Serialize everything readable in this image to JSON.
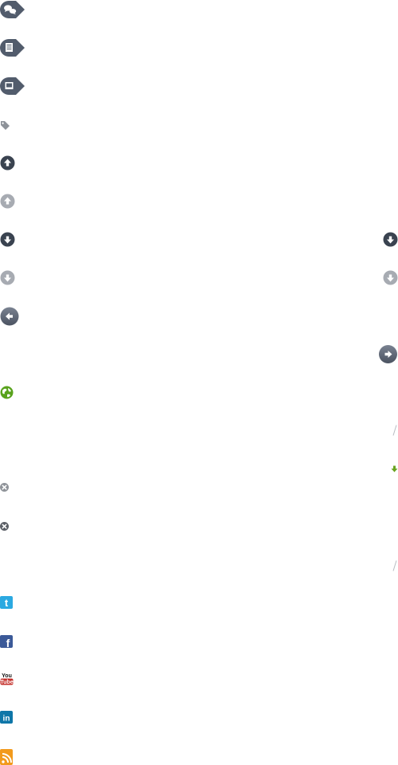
{
  "colors": {
    "bubble_dark": "#525c6c",
    "circle_dark": "#3a4350",
    "circle_light": "#a7abb2",
    "circle_gray": "#9ea2a8",
    "arrow_blue_gray": "#5e6675",
    "globe_green": "#58a21c",
    "arrow_green": "#6aa320",
    "slash_gray": "#b8bcc2",
    "close_light": "#8f9399",
    "close_dark": "#5b5f66",
    "twitter": "#2ba9e1",
    "facebook": "#3b5998",
    "youtube_red": "#c4302b",
    "linkedin": "#0e76a8",
    "rss": "#f29a1c"
  },
  "icons": [
    {
      "name": "comments-bubble-icon"
    },
    {
      "name": "article-bubble-icon"
    },
    {
      "name": "gallery-bubble-icon"
    },
    {
      "name": "tag-icon"
    },
    {
      "name": "arrow-up-dark-icon"
    },
    {
      "name": "arrow-up-light-icon"
    },
    {
      "name": "arrow-down-dark-icon"
    },
    {
      "name": "arrow-down-light-icon"
    },
    {
      "name": "arrow-left-icon"
    },
    {
      "name": "arrow-right-icon"
    },
    {
      "name": "globe-icon"
    },
    {
      "name": "slash-divider-icon"
    },
    {
      "name": "arrow-down-green-icon"
    },
    {
      "name": "close-light-icon"
    },
    {
      "name": "close-dark-icon"
    },
    {
      "name": "twitter-icon"
    },
    {
      "name": "facebook-icon"
    },
    {
      "name": "youtube-icon"
    },
    {
      "name": "linkedin-icon"
    },
    {
      "name": "rss-icon"
    }
  ],
  "youtube": {
    "top": "You",
    "bottom": "Tube"
  },
  "facebook": {
    "letter": "f"
  },
  "twitter": {
    "letter": "t"
  },
  "linkedin": {
    "letter": "in"
  }
}
